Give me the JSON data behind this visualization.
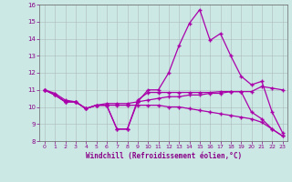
{
  "xlabel": "Windchill (Refroidissement éolien,°C)",
  "xlim": [
    -0.5,
    23.5
  ],
  "ylim": [
    8,
    16
  ],
  "yticks": [
    8,
    9,
    10,
    11,
    12,
    13,
    14,
    15,
    16
  ],
  "xticks": [
    0,
    1,
    2,
    3,
    4,
    5,
    6,
    7,
    8,
    9,
    10,
    11,
    12,
    13,
    14,
    15,
    16,
    17,
    18,
    19,
    20,
    21,
    22,
    23
  ],
  "bg_color": "#cce8e4",
  "line_color": "#aa00aa",
  "grid_color": "#aabbbb",
  "line1": [
    11.0,
    10.7,
    10.3,
    10.3,
    9.9,
    10.1,
    10.1,
    8.7,
    8.7,
    10.3,
    11.0,
    11.0,
    12.0,
    13.6,
    14.9,
    15.7,
    13.9,
    14.3,
    13.0,
    11.8,
    11.3,
    11.5,
    9.7,
    8.5
  ],
  "line2": [
    11.0,
    10.7,
    10.3,
    10.3,
    9.9,
    10.1,
    10.1,
    8.7,
    8.7,
    10.4,
    10.85,
    10.85,
    10.85,
    10.85,
    10.85,
    10.85,
    10.85,
    10.9,
    10.9,
    10.9,
    10.9,
    11.2,
    11.1,
    11.0
  ],
  "line3": [
    11.0,
    10.7,
    10.3,
    10.3,
    9.9,
    10.1,
    10.1,
    10.1,
    10.1,
    10.1,
    10.1,
    10.1,
    10.0,
    10.0,
    9.9,
    9.8,
    9.7,
    9.6,
    9.5,
    9.4,
    9.3,
    9.1,
    8.7,
    8.3
  ],
  "line4": [
    11.0,
    10.8,
    10.4,
    10.3,
    9.9,
    10.1,
    10.2,
    10.2,
    10.2,
    10.3,
    10.4,
    10.5,
    10.6,
    10.6,
    10.7,
    10.7,
    10.8,
    10.8,
    10.9,
    10.9,
    9.7,
    9.3,
    8.7,
    8.3
  ]
}
